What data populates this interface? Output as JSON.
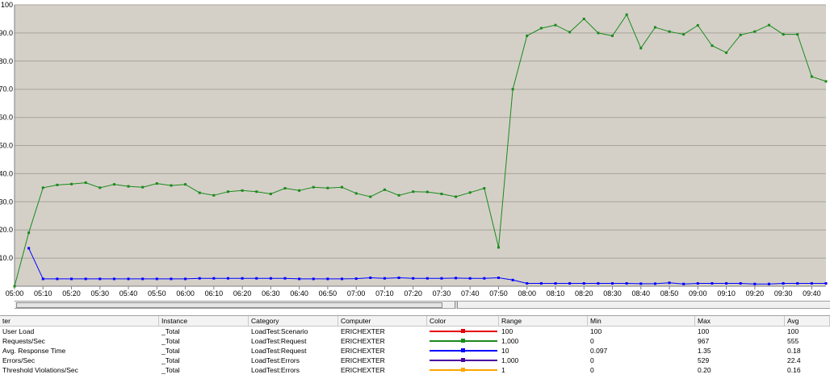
{
  "colors": {
    "plot_bg": "#d4d0c8",
    "gridline": "#a8a49c",
    "user_load": "#e60000",
    "requests_per_sec": "#1b8a1b",
    "avg_response_time": "#0000ff",
    "errors_per_sec": "#4b00a0",
    "threshold_violations": "#ffa500"
  },
  "chart_data": {
    "type": "line",
    "y_ticks": [
      "100",
      "90.0",
      "80.0",
      "70.0",
      "60.0",
      "50.0",
      "40.0",
      "30.0",
      "20.0",
      "10.0"
    ],
    "ylim": [
      0,
      100
    ],
    "x_tick_labels": [
      "05:00",
      "05:10",
      "05:20",
      "05:30",
      "05:40",
      "05:50",
      "06:00",
      "06:10",
      "06:20",
      "06:30",
      "06:40",
      "06:50",
      "07:00",
      "07:10",
      "07:20",
      "07:30",
      "07:40",
      "07:50",
      "08:00",
      "08:10",
      "08:20",
      "08:30",
      "08:40",
      "08:50",
      "09:00",
      "09:10",
      "09:20",
      "09:30",
      "09:40"
    ],
    "grid": true,
    "series": [
      {
        "name": "Requests/Sec",
        "color_key": "requests_per_sec",
        "points": [
          [
            "05:00",
            0
          ],
          [
            "05:05",
            19
          ],
          [
            "05:10",
            35
          ],
          [
            "05:15",
            36
          ],
          [
            "05:20",
            36.3
          ],
          [
            "05:25",
            36.8
          ],
          [
            "05:30",
            35
          ],
          [
            "05:35",
            36.2
          ],
          [
            "05:40",
            35.5
          ],
          [
            "05:45",
            35.2
          ],
          [
            "05:50",
            36.5
          ],
          [
            "05:55",
            35.8
          ],
          [
            "06:00",
            36.2
          ],
          [
            "06:05",
            33.2
          ],
          [
            "06:10",
            32.3
          ],
          [
            "06:15",
            33.6
          ],
          [
            "06:20",
            34
          ],
          [
            "06:25",
            33.6
          ],
          [
            "06:30",
            32.8
          ],
          [
            "06:35",
            34.8
          ],
          [
            "06:40",
            34
          ],
          [
            "06:45",
            35.2
          ],
          [
            "06:50",
            34.9
          ],
          [
            "06:55",
            35.2
          ],
          [
            "07:00",
            33
          ],
          [
            "07:05",
            31.8
          ],
          [
            "07:10",
            34.3
          ],
          [
            "07:15",
            32.3
          ],
          [
            "07:20",
            33.6
          ],
          [
            "07:25",
            33.5
          ],
          [
            "07:30",
            32.8
          ],
          [
            "07:35",
            31.8
          ],
          [
            "07:40",
            33.3
          ],
          [
            "07:45",
            34.8
          ],
          [
            "07:50",
            13.8
          ],
          [
            "07:55",
            70
          ],
          [
            "08:00",
            89
          ],
          [
            "08:05",
            91.7
          ],
          [
            "08:10",
            92.8
          ],
          [
            "08:15",
            90.3
          ],
          [
            "08:20",
            95
          ],
          [
            "08:25",
            90
          ],
          [
            "08:30",
            89
          ],
          [
            "08:35",
            96.5
          ],
          [
            "08:40",
            84.6
          ],
          [
            "08:45",
            92
          ],
          [
            "08:50",
            90.5
          ],
          [
            "08:55",
            89.5
          ],
          [
            "09:00",
            92.7
          ],
          [
            "09:05",
            85.5
          ],
          [
            "09:10",
            83
          ],
          [
            "09:15",
            89.3
          ],
          [
            "09:20",
            90.5
          ],
          [
            "09:25",
            92.8
          ],
          [
            "09:30",
            89.5
          ],
          [
            "09:35",
            89.5
          ],
          [
            "09:40",
            74.5
          ],
          [
            "09:45",
            72.8
          ]
        ]
      },
      {
        "name": "Avg. Response Time",
        "color_key": "avg_response_time",
        "points": [
          [
            "05:05",
            13.5
          ],
          [
            "05:10",
            2.6
          ],
          [
            "05:15",
            2.6
          ],
          [
            "05:20",
            2.6
          ],
          [
            "05:25",
            2.6
          ],
          [
            "05:30",
            2.6
          ],
          [
            "05:35",
            2.6
          ],
          [
            "05:40",
            2.6
          ],
          [
            "05:45",
            2.6
          ],
          [
            "05:50",
            2.6
          ],
          [
            "05:55",
            2.6
          ],
          [
            "06:00",
            2.6
          ],
          [
            "06:05",
            2.8
          ],
          [
            "06:10",
            2.8
          ],
          [
            "06:15",
            2.8
          ],
          [
            "06:20",
            2.8
          ],
          [
            "06:25",
            2.8
          ],
          [
            "06:30",
            2.8
          ],
          [
            "06:35",
            2.8
          ],
          [
            "06:40",
            2.6
          ],
          [
            "06:45",
            2.6
          ],
          [
            "06:50",
            2.6
          ],
          [
            "06:55",
            2.6
          ],
          [
            "07:00",
            2.7
          ],
          [
            "07:05",
            3
          ],
          [
            "07:10",
            2.8
          ],
          [
            "07:15",
            3
          ],
          [
            "07:20",
            2.8
          ],
          [
            "07:25",
            2.8
          ],
          [
            "07:30",
            2.8
          ],
          [
            "07:35",
            2.9
          ],
          [
            "07:40",
            2.8
          ],
          [
            "07:45",
            2.8
          ],
          [
            "07:50",
            3
          ],
          [
            "07:55",
            2.2
          ],
          [
            "08:00",
            1
          ],
          [
            "08:05",
            1
          ],
          [
            "08:10",
            1
          ],
          [
            "08:15",
            1
          ],
          [
            "08:20",
            1
          ],
          [
            "08:25",
            1
          ],
          [
            "08:30",
            1
          ],
          [
            "08:35",
            1
          ],
          [
            "08:40",
            0.9
          ],
          [
            "08:45",
            0.9
          ],
          [
            "08:50",
            1.2
          ],
          [
            "08:55",
            0.8
          ],
          [
            "09:00",
            1
          ],
          [
            "09:05",
            1
          ],
          [
            "09:10",
            1
          ],
          [
            "09:15",
            1
          ],
          [
            "09:20",
            0.8
          ],
          [
            "09:25",
            0.8
          ],
          [
            "09:30",
            1
          ],
          [
            "09:35",
            1
          ],
          [
            "09:40",
            1
          ],
          [
            "09:45",
            1
          ]
        ]
      }
    ]
  },
  "legend": {
    "headers": [
      "ter",
      "Instance",
      "Category",
      "Computer",
      "Color",
      "Range",
      "Min",
      "Max",
      "Avg"
    ],
    "rows": [
      {
        "counter": "User Load",
        "instance": "_Total",
        "category": "LoadTest:Scenario",
        "computer": "ERICHEXTER",
        "color_key": "user_load",
        "range": "100",
        "min": "100",
        "max": "100",
        "avg": "100"
      },
      {
        "counter": "Requests/Sec",
        "instance": "_Total",
        "category": "LoadTest:Request",
        "computer": "ERICHEXTER",
        "color_key": "requests_per_sec",
        "range": "1,000",
        "min": "0",
        "max": "967",
        "avg": "555"
      },
      {
        "counter": "Avg. Response Time",
        "instance": "_Total",
        "category": "LoadTest:Request",
        "computer": "ERICHEXTER",
        "color_key": "avg_response_time",
        "range": "10",
        "min": "0.097",
        "max": "1.35",
        "avg": "0.18"
      },
      {
        "counter": "Errors/Sec",
        "instance": "_Total",
        "category": "LoadTest:Errors",
        "computer": "ERICHEXTER",
        "color_key": "errors_per_sec",
        "range": "1,000",
        "min": "0",
        "max": "529",
        "avg": "22.4"
      },
      {
        "counter": "Threshold Violations/Sec",
        "instance": "_Total",
        "category": "LoadTest:Errors",
        "computer": "ERICHEXTER",
        "color_key": "threshold_violations",
        "range": "1",
        "min": "0",
        "max": "0.20",
        "avg": "0.16"
      }
    ]
  }
}
